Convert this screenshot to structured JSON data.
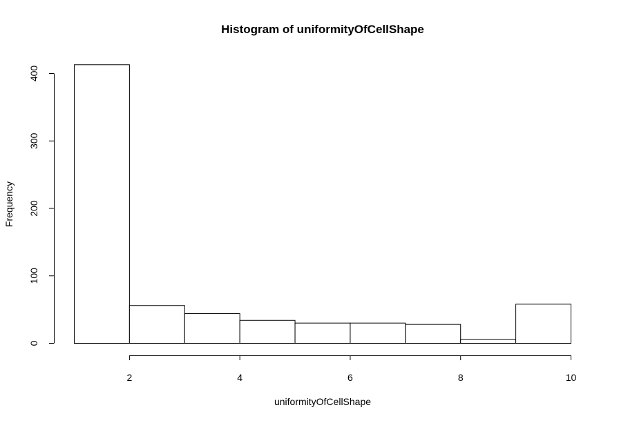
{
  "chart_data": {
    "type": "bar",
    "title": "Histogram of uniformityOfCellShape",
    "xlabel": "uniformityOfCellShape",
    "ylabel": "Frequency",
    "bins": [
      {
        "start": 1,
        "end": 2,
        "count": 413
      },
      {
        "start": 2,
        "end": 3,
        "count": 56
      },
      {
        "start": 3,
        "end": 4,
        "count": 44
      },
      {
        "start": 4,
        "end": 5,
        "count": 34
      },
      {
        "start": 5,
        "end": 6,
        "count": 30
      },
      {
        "start": 6,
        "end": 7,
        "count": 30
      },
      {
        "start": 7,
        "end": 8,
        "count": 28
      },
      {
        "start": 8,
        "end": 9,
        "count": 6
      },
      {
        "start": 9,
        "end": 10,
        "count": 58
      }
    ],
    "xlim": [
      1,
      10
    ],
    "ylim": [
      0,
      413
    ],
    "xticks": [
      2,
      4,
      6,
      8,
      10
    ],
    "yticks": [
      0,
      100,
      200,
      300,
      400
    ],
    "grid": false
  }
}
